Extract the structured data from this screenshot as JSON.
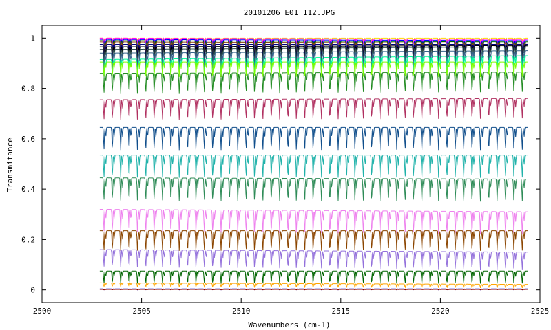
{
  "chart_data": {
    "type": "line",
    "title": "20101206_E01_112.JPG",
    "xlabel": "Wavenumbers (cm-1)",
    "ylabel": "Transmitance",
    "xlim": [
      2500,
      2525
    ],
    "ylim": [
      -0.05,
      1.05
    ],
    "xticks": [
      2500,
      2505,
      2510,
      2515,
      2520,
      2525
    ],
    "yticks": [
      0,
      0.2,
      0.4,
      0.6,
      0.8,
      1
    ],
    "ytick_labels": [
      "0",
      "0.2",
      "0.4",
      "0.6",
      "0.8",
      "1"
    ],
    "grid": false,
    "legend": "none",
    "x_range_data": [
      2502.9,
      2524.4
    ],
    "line_spacing_cm1": 0.42,
    "series": [
      {
        "color": "#FFD700",
        "start": 1.0,
        "end": 1.0,
        "depth": 0.01
      },
      {
        "color": "#FF00FF",
        "start": 1.0,
        "end": 0.995,
        "depth": 0.02
      },
      {
        "color": "#0000FF",
        "start": 0.995,
        "end": 0.99,
        "depth": 0.04
      },
      {
        "color": "#006400",
        "start": 0.99,
        "end": 0.985,
        "depth": 0.05
      },
      {
        "color": "#8B4513",
        "start": 0.985,
        "end": 0.98,
        "depth": 0.05
      },
      {
        "color": "#000080",
        "start": 0.975,
        "end": 0.975,
        "depth": 0.05
      },
      {
        "color": "#000000",
        "start": 0.965,
        "end": 0.97,
        "depth": 0.06
      },
      {
        "color": "#2F4F4F",
        "start": 0.955,
        "end": 0.965,
        "depth": 0.06
      },
      {
        "color": "#36648B",
        "start": 0.94,
        "end": 0.95,
        "depth": 0.07
      },
      {
        "color": "#00FA9A",
        "start": 0.915,
        "end": 0.93,
        "depth": 0.07
      },
      {
        "color": "#7CFC00",
        "start": 0.905,
        "end": 0.905,
        "depth": 0.06
      },
      {
        "color": "#228B22",
        "start": 0.86,
        "end": 0.865,
        "depth": 0.08
      },
      {
        "color": "#B03060",
        "start": 0.755,
        "end": 0.76,
        "depth": 0.08
      },
      {
        "color": "#104E8B",
        "start": 0.645,
        "end": 0.645,
        "depth": 0.09
      },
      {
        "color": "#20B2AA",
        "start": 0.535,
        "end": 0.535,
        "depth": 0.09
      },
      {
        "color": "#2E8B57",
        "start": 0.445,
        "end": 0.44,
        "depth": 0.09
      },
      {
        "color": "#EE82EE",
        "start": 0.32,
        "end": 0.31,
        "depth": 0.09
      },
      {
        "color": "#8B4500",
        "start": 0.235,
        "end": 0.235,
        "depth": 0.08
      },
      {
        "color": "#9370DB",
        "start": 0.16,
        "end": 0.15,
        "depth": 0.07
      },
      {
        "color": "#006400",
        "start": 0.075,
        "end": 0.075,
        "depth": 0.05
      },
      {
        "color": "#FFA500",
        "start": 0.028,
        "end": 0.022,
        "depth": 0.015
      },
      {
        "color": "#0000CD",
        "start": 0.004,
        "end": 0.004,
        "depth": 0.004
      },
      {
        "color": "#8B0000",
        "start": 0.002,
        "end": 0.002,
        "depth": 0.002
      }
    ]
  }
}
